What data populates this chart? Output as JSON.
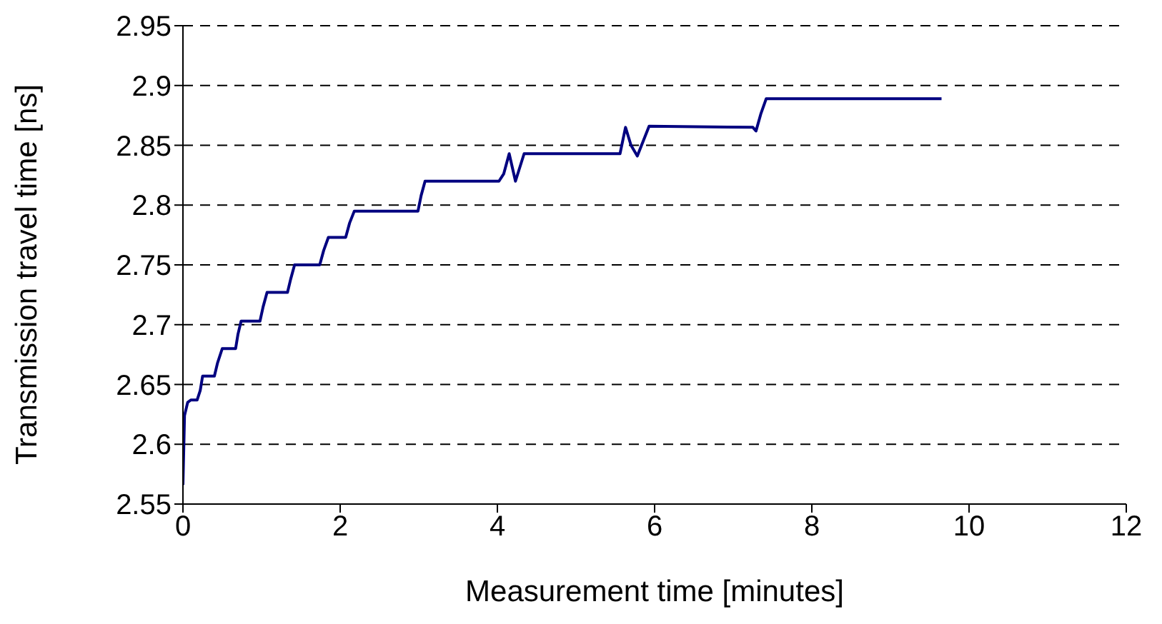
{
  "chart_data": {
    "type": "line",
    "xlabel": "Measurement time [minutes]",
    "ylabel": "Transmission travel time [ns]",
    "xlim": [
      0,
      12
    ],
    "xticks": [
      0,
      2,
      4,
      6,
      8,
      10,
      12
    ],
    "ylim": [
      2.55,
      2.95
    ],
    "yticks": [
      2.55,
      2.6,
      2.65,
      2.7,
      2.75,
      2.8,
      2.85,
      2.9,
      2.95
    ],
    "grid": "y",
    "legend": false,
    "marker": "none",
    "line_style": "solid",
    "series": [
      {
        "color": "#000080",
        "x": [
          0,
          0.02,
          0.06,
          0.1,
          0.18,
          0.22,
          0.25,
          0.4,
          0.44,
          0.5,
          0.67,
          0.7,
          0.74,
          0.98,
          1.02,
          1.07,
          1.33,
          1.37,
          1.42,
          1.74,
          1.79,
          1.85,
          2.07,
          2.12,
          2.18,
          2.99,
          3.03,
          3.08,
          4.02,
          4.08,
          4.15,
          4.23,
          4.34,
          5.56,
          5.63,
          5.7,
          5.78,
          5.93,
          7.25,
          7.29,
          7.35,
          7.42,
          9.65
        ],
        "values": [
          2.566,
          2.624,
          2.635,
          2.637,
          2.637,
          2.645,
          2.657,
          2.657,
          2.668,
          2.68,
          2.68,
          2.692,
          2.703,
          2.703,
          2.715,
          2.727,
          2.727,
          2.738,
          2.75,
          2.75,
          2.762,
          2.773,
          2.773,
          2.785,
          2.795,
          2.795,
          2.808,
          2.82,
          2.82,
          2.826,
          2.843,
          2.82,
          2.843,
          2.843,
          2.865,
          2.85,
          2.841,
          2.866,
          2.865,
          2.862,
          2.876,
          2.889,
          2.889
        ]
      }
    ]
  }
}
